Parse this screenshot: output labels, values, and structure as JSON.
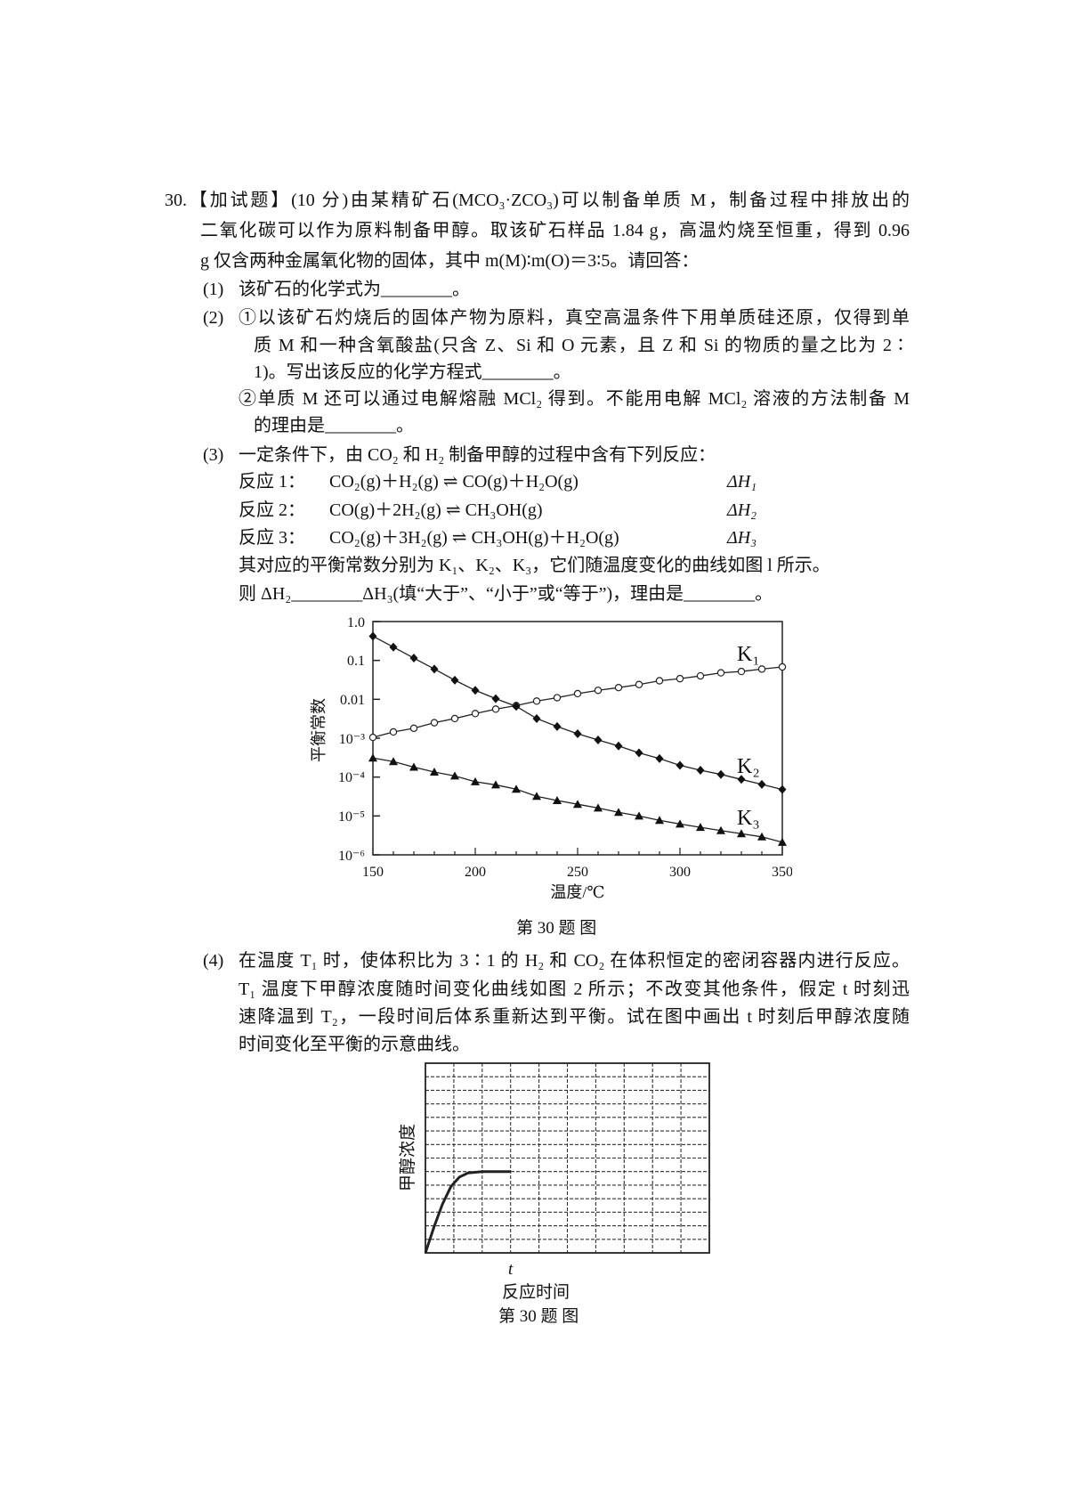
{
  "question": {
    "lines": [
      "30.【加试题】(10 分)由某精矿石(MCO₃·ZCO₃)可以制备单质 M，制备过程中排放出的",
      "二氧化碳可以作为原料制备甲醇。取该矿石样品 1.84 g，高温灼烧至恒重，得到 0.96",
      "g 仅含两种金属氧化物的固体，其中 m(M)∶m(O)＝3∶5。请回答："
    ],
    "part1": {
      "num": "(1)",
      "text": "该矿石的化学式为________。"
    },
    "part2": {
      "num": "(2)",
      "lines": [
        "①以该矿石灼烧后的固体产物为原料，真空高温条件下用单质硅还原，仅得到单",
        "质 M 和一种含氧酸盐(只含 Z、Si 和 O 元素，且 Z 和 Si 的物质的量之比为 2∶",
        "1)。写出该反应的化学方程式________。",
        "②单质 M 还可以通过电解熔融 MCl₂ 得到。不能用电解 MCl₂ 溶液的方法制备 M",
        "的理由是________。"
      ]
    },
    "part3": {
      "num": "(3)",
      "intro": "一定条件下，由 CO₂ 和 H₂ 制备甲醇的过程中含有下列反应：",
      "reactions": [
        {
          "label": "反应 1：",
          "equation": "CO₂(g)＋H₂(g) ⇌ CO(g)＋H₂O(g)",
          "dh": "ΔH₁"
        },
        {
          "label": "反应 2：",
          "equation": "CO(g)＋2H₂(g) ⇌ CH₃OH(g)",
          "dh": "ΔH₂"
        },
        {
          "label": "反应 3：",
          "equation": "CO₂(g)＋3H₂(g) ⇌ CH₃OH(g)＋H₂O(g)",
          "dh": "ΔH₃"
        }
      ],
      "line1": "其对应的平衡常数分别为 K₁、K₂、K₃，它们随温度变化的曲线如图 l 所示。",
      "line2": "则 ΔH₂________ΔH₃(填“大于”、“小于”或“等于”)，理由是________。"
    },
    "part4": {
      "num": "(4)",
      "lines": [
        "在温度 T₁ 时，使体积比为 3∶1 的 H₂ 和 CO₂ 在体积恒定的密闭容器内进行反应。",
        "T₁ 温度下甲醇浓度随时间变化曲线如图 2 所示；不改变其他条件，假定 t 时刻迅",
        "速降温到 T₂，一段时间后体系重新达到平衡。试在图中画出 t 时刻后甲醇浓度随",
        "时间变化至平衡的示意曲线。"
      ]
    }
  },
  "chart_data": [
    {
      "type": "line",
      "caption": "第 30 题 图",
      "xlabel": "温度/℃",
      "ylabel": "平衡常数",
      "xlim": [
        150,
        350
      ],
      "ylim": [
        1e-06,
        1
      ],
      "yscale": "log",
      "grid": false,
      "x_ticks": [
        "150",
        "200",
        "250",
        "300",
        "350"
      ],
      "y_ticks": [
        "1.0",
        "0.1",
        "0.01",
        "10⁻³",
        "10⁻⁴",
        "10⁻⁵",
        "10⁻⁶"
      ],
      "x": [
        150,
        160,
        170,
        180,
        190,
        200,
        210,
        220,
        230,
        240,
        250,
        260,
        270,
        280,
        290,
        300,
        310,
        320,
        330,
        340,
        350
      ],
      "series": [
        {
          "name": "K₁",
          "marker": "open-circle",
          "values": [
            0.00105,
            0.00145,
            0.0018,
            0.0025,
            0.0032,
            0.0043,
            0.0056,
            0.0069,
            0.009,
            0.011,
            0.014,
            0.017,
            0.02,
            0.024,
            0.03,
            0.034,
            0.04,
            0.048,
            0.052,
            0.06,
            0.068
          ]
        },
        {
          "name": "K₂",
          "marker": "filled-diamond",
          "values": [
            0.42,
            0.22,
            0.115,
            0.06,
            0.031,
            0.017,
            0.0104,
            0.0066,
            0.0032,
            0.002,
            0.0013,
            0.0009,
            0.00063,
            0.00042,
            0.0003,
            0.0002,
            0.00015,
            0.000117,
            8.7e-05,
            6.5e-05,
            4.8e-05
          ]
        },
        {
          "name": "K₃",
          "marker": "filled-triangle",
          "values": [
            0.00031,
            0.00025,
            0.00018,
            0.000135,
            0.000107,
            7.6e-05,
            6.3e-05,
            4.9e-05,
            3.2e-05,
            2.5e-05,
            2e-05,
            1.6e-05,
            1.24e-05,
            1e-05,
            7.7e-06,
            6.2e-06,
            5.1e-06,
            4.2e-06,
            3.5e-06,
            2.9e-06,
            2.1e-06
          ]
        }
      ]
    },
    {
      "type": "line",
      "caption": "第 30 题 图",
      "xlabel": "反应时间",
      "ylabel": "甲醇浓度",
      "x_tick_label": "t",
      "x_tick_at": 3,
      "grid": true,
      "grid_columns": 10,
      "grid_rows": 14,
      "points": [
        [
          0,
          0
        ],
        [
          0.3,
          1.9
        ],
        [
          0.6,
          3.6
        ],
        [
          0.9,
          4.9
        ],
        [
          1.2,
          5.6
        ],
        [
          1.5,
          5.9
        ],
        [
          2,
          6
        ],
        [
          3,
          6
        ]
      ]
    }
  ]
}
